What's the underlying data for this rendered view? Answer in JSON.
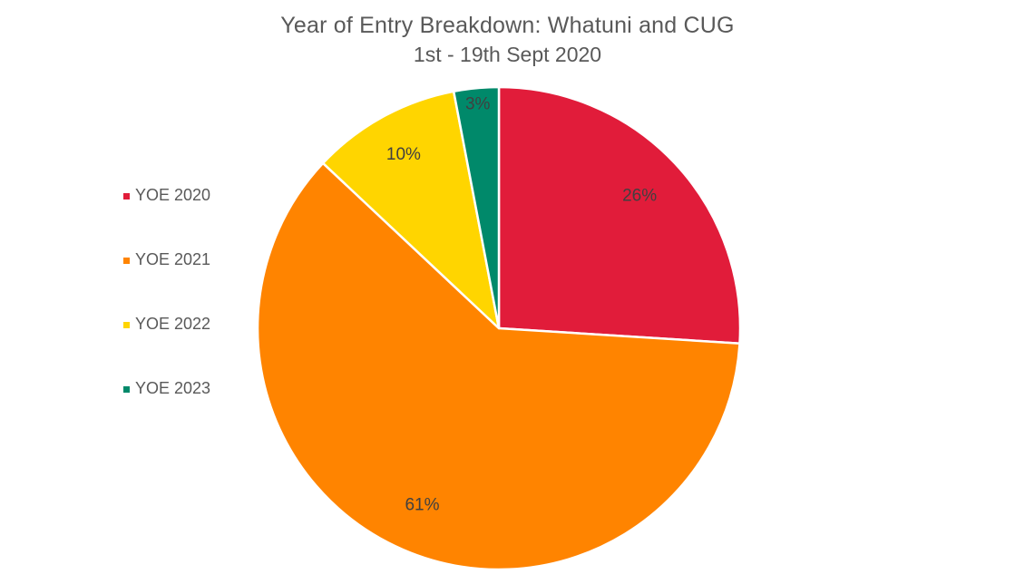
{
  "chart_data": {
    "type": "pie",
    "title": "Year of Entry Breakdown: Whatuni and CUG",
    "subtitle": "1st - 19th Sept 2020",
    "legend_position": "left",
    "categories": [
      "YOE 2020",
      "YOE 2021",
      "YOE 2022",
      "YOE 2023"
    ],
    "values": [
      26,
      61,
      10,
      3
    ],
    "data_labels": [
      "26%",
      "61%",
      "10%",
      "3%"
    ],
    "colors": [
      "#e11c3a",
      "#ff8400",
      "#ffd500",
      "#00896a"
    ]
  }
}
